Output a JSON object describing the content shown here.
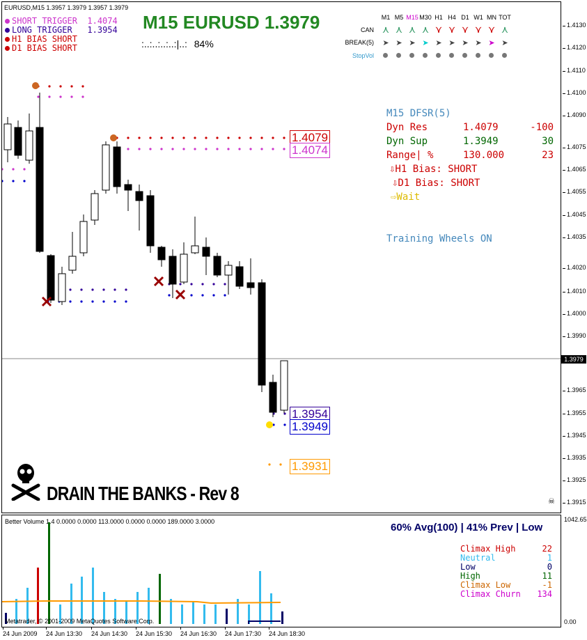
{
  "symbol_header": "EURUSD,M15  1.3957 1.3979 1.3957 1.3979",
  "title": "M15 EURUSD 1.3979",
  "progress_text": ":..:..:..:..:|..:",
  "progress_pct": "84%",
  "legend": [
    {
      "label": "SHORT TRIGGER",
      "value": "1.4074",
      "color": "#cc33cc"
    },
    {
      "label": "LONG TRIGGER",
      "value": "1.3954",
      "color": "#330099"
    },
    {
      "label": "H1 BIAS SHORT",
      "value": "",
      "color": "#cc0000"
    },
    {
      "label": "D1 BIAS SHORT",
      "value": "",
      "color": "#cc0000"
    }
  ],
  "timeframes": {
    "headers": [
      "M1",
      "M5",
      "M15",
      "M30",
      "H1",
      "H4",
      "D1",
      "W1",
      "MN",
      "TOT"
    ],
    "active": "M15",
    "can_label": "CAN",
    "break_label": "BREAK(5)",
    "stopvol_label": "StopVol",
    "can_dirs": [
      "up",
      "up",
      "up",
      "up",
      "down",
      "down",
      "down",
      "down",
      "down",
      "up"
    ],
    "break_colors": [
      "#444444",
      "#444444",
      "#444444",
      "#00cccc",
      "#444444",
      "#444444",
      "#444444",
      "#444444",
      "#cc00cc",
      "#444444"
    ]
  },
  "dfsr": {
    "title": "M15 DFSR(5)",
    "dyn_res_label": "Dyn Res",
    "dyn_res_value": "1.4079",
    "dyn_res_pips": "-100",
    "dyn_sup_label": "Dyn Sup",
    "dyn_sup_value": "1.3949",
    "dyn_sup_pips": "30",
    "range_label": "Range| %",
    "range_value": "130.000",
    "range_pips": "23",
    "h1_bias": "⇩H1 Bias: SHORT",
    "d1_bias": "⇩D1 Bias: SHORT",
    "action": "⇨Wait",
    "training": "Training Wheels ON"
  },
  "levels": {
    "res": "1.4079",
    "short_trigger": "1.4074",
    "long_trigger": "1.3954",
    "sup": "1.3949",
    "target": "1.3931"
  },
  "price_axis": [
    "1.4130",
    "1.4120",
    "1.4110",
    "1.4100",
    "1.4090",
    "1.4075",
    "1.4065",
    "1.4055",
    "1.4045",
    "1.4035",
    "1.4020",
    "1.4010",
    "1.4000",
    "1.3990",
    "1.3965",
    "1.3955",
    "1.3945",
    "1.3935",
    "1.3925",
    "1.3915"
  ],
  "current_price": "1.3979",
  "banner": "DRAIN THE BANKS - Rev 8",
  "volume": {
    "header": "Better Volume 1.4 0.0000 0.0000 113.0000 0.0000 0.0000 189.0000 3.0000",
    "summary": "60% Avg(100) | 41% Prev | Low",
    "axis_top": "1042.65",
    "axis_bottom": "0.00",
    "copyright": "Metatrader, © 2001-2009 MetaQuotes Software Corp.",
    "stats": [
      {
        "label": "Climax High",
        "value": "22",
        "color": "#cc0000"
      },
      {
        "label": "Neutral",
        "value": "1",
        "color": "#33bbee"
      },
      {
        "label": "Low",
        "value": "0",
        "color": "#000066"
      },
      {
        "label": "High",
        "value": "11",
        "color": "#006600"
      },
      {
        "label": "Climax Low",
        "value": "-1",
        "color": "#cc6600"
      },
      {
        "label": "Climax Churn",
        "value": "134",
        "color": "#cc00cc"
      }
    ]
  },
  "dates": [
    "24 Jun 2009",
    "24 Jun 13:30",
    "24 Jun 14:30",
    "24 Jun 15:30",
    "24 Jun 16:30",
    "24 Jun 17:30",
    "24 Jun 18:30"
  ],
  "colors": {
    "title_green": "#228822",
    "res_red": "#cc0000",
    "short_magenta": "#cc33cc",
    "long_purple": "#330099",
    "sup_blue": "#0000cc",
    "target_orange": "#ff9900",
    "dfsr_blue": "#4488bb",
    "dfsr_green": "#006600",
    "wait_yellow": "#ddbb00"
  }
}
